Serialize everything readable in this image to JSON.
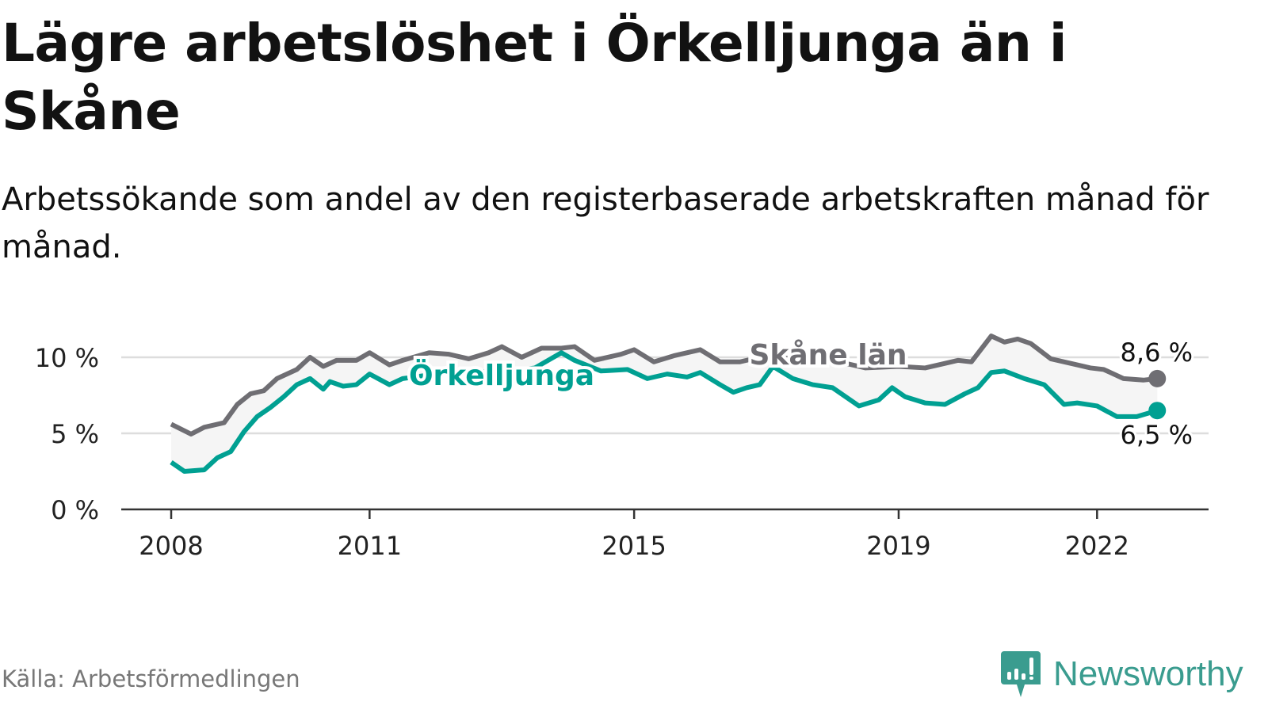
{
  "title": "Lägre arbetslöshet i Örkelljunga än i Skåne",
  "subtitle": "Arbetssökande som andel av den registerbaserade arbetskraften månad för månad.",
  "source": "Källa: Arbetsförmedlingen",
  "logo": "Newsworthy",
  "colors": {
    "skane": "#6f6e73",
    "orkelljunga": "#00a092",
    "grid": "#dddddd",
    "fill": "#f5f5f5"
  },
  "chart_data": {
    "type": "line",
    "title": "Lägre arbetslöshet i Örkelljunga än i Skåne",
    "xlabel": "",
    "ylabel": "",
    "ylim": [
      0,
      10
    ],
    "xlim": [
      2007.25,
      2023.5
    ],
    "yticks": [
      {
        "value": 0,
        "label": "0 %"
      },
      {
        "value": 5,
        "label": "5 %"
      },
      {
        "value": 10,
        "label": "10 %"
      }
    ],
    "xticks": [
      {
        "value": 2008,
        "label": "2008"
      },
      {
        "value": 2011,
        "label": "2011"
      },
      {
        "value": 2015,
        "label": "2015"
      },
      {
        "value": 2019,
        "label": "2019"
      },
      {
        "value": 2022,
        "label": "2022"
      }
    ],
    "grid": true,
    "series": [
      {
        "name": "Skåne län",
        "key": "skane",
        "end_label": "8,6 %",
        "x": [
          2008.0,
          2008.3,
          2008.5,
          2008.8,
          2009.0,
          2009.2,
          2009.4,
          2009.6,
          2009.9,
          2010.1,
          2010.3,
          2010.5,
          2010.8,
          2011.0,
          2011.3,
          2011.5,
          2011.9,
          2012.2,
          2012.5,
          2012.8,
          2013.0,
          2013.3,
          2013.6,
          2013.9,
          2014.1,
          2014.4,
          2014.8,
          2015.0,
          2015.3,
          2015.6,
          2016.0,
          2016.3,
          2016.6,
          2016.9,
          2017.5,
          2018.0,
          2018.5,
          2019.0,
          2019.4,
          2019.7,
          2019.9,
          2020.1,
          2020.4,
          2020.6,
          2020.8,
          2021.0,
          2021.3,
          2021.7,
          2021.9,
          2022.1,
          2022.4,
          2022.7,
          2022.91
        ],
        "y": [
          5.6,
          4.95,
          5.4,
          5.7,
          6.9,
          7.6,
          7.8,
          8.6,
          9.2,
          10.0,
          9.4,
          9.8,
          9.8,
          10.3,
          9.5,
          9.8,
          10.3,
          10.2,
          9.9,
          10.3,
          10.7,
          10.0,
          10.6,
          10.6,
          10.7,
          9.8,
          10.2,
          10.5,
          9.7,
          10.1,
          10.5,
          9.7,
          9.7,
          10.0,
          9.9,
          9.8,
          9.3,
          9.4,
          9.3,
          9.6,
          9.8,
          9.7,
          11.4,
          11.0,
          11.2,
          10.9,
          9.9,
          9.5,
          9.3,
          9.2,
          8.6,
          8.5,
          8.6
        ]
      },
      {
        "name": "Örkelljunga",
        "key": "orkelljunga",
        "end_label": "6,5 %",
        "x": [
          2008.0,
          2008.2,
          2008.5,
          2008.7,
          2008.9,
          2009.1,
          2009.3,
          2009.5,
          2009.7,
          2009.9,
          2010.1,
          2010.3,
          2010.4,
          2010.6,
          2010.8,
          2011.0,
          2011.3,
          2011.5,
          2012.0,
          2012.5,
          2013.0,
          2013.5,
          2013.9,
          2014.1,
          2014.5,
          2014.9,
          2015.2,
          2015.5,
          2015.8,
          2016.0,
          2016.3,
          2016.5,
          2016.7,
          2016.9,
          2017.1,
          2017.4,
          2017.7,
          2018.0,
          2018.4,
          2018.7,
          2018.9,
          2019.1,
          2019.4,
          2019.7,
          2020.0,
          2020.2,
          2020.4,
          2020.6,
          2020.9,
          2021.2,
          2021.5,
          2021.7,
          2022.0,
          2022.3,
          2022.6,
          2022.91
        ],
        "y": [
          3.1,
          2.5,
          2.6,
          3.4,
          3.8,
          5.1,
          6.1,
          6.7,
          7.4,
          8.2,
          8.6,
          7.9,
          8.4,
          8.1,
          8.2,
          8.9,
          8.2,
          8.6,
          8.9,
          9.1,
          9.0,
          9.3,
          10.3,
          9.8,
          9.1,
          9.2,
          8.6,
          8.9,
          8.7,
          9.0,
          8.2,
          7.7,
          8.0,
          8.2,
          9.4,
          8.6,
          8.2,
          8.0,
          6.8,
          7.2,
          8.0,
          7.4,
          7.0,
          6.9,
          7.6,
          8.0,
          9.0,
          9.1,
          8.6,
          8.2,
          6.9,
          7.0,
          6.8,
          6.1,
          6.1,
          6.5
        ]
      }
    ]
  }
}
